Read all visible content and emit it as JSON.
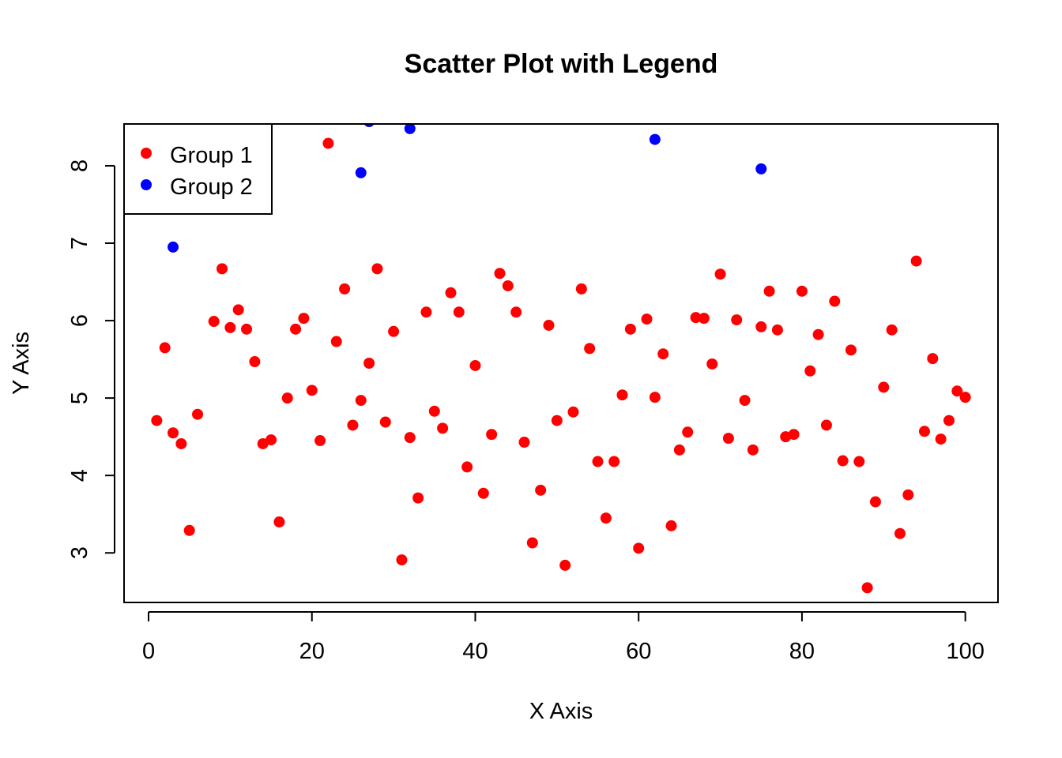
{
  "chart_data": {
    "type": "scatter",
    "title": "Scatter Plot with Legend",
    "xlabel": "X Axis",
    "ylabel": "Y Axis",
    "xlim": [
      -3,
      104
    ],
    "ylim": [
      2.36,
      8.54
    ],
    "xticks": [
      0,
      20,
      40,
      60,
      80,
      100
    ],
    "yticks": [
      3,
      4,
      5,
      6,
      7,
      8
    ],
    "grid": false,
    "legend_position": "top-left",
    "series": [
      {
        "name": "Group 1",
        "color": "#ff0000",
        "x": [
          1,
          2,
          3,
          4,
          5,
          6,
          8,
          9,
          10,
          11,
          12,
          13,
          14,
          15,
          16,
          17,
          18,
          19,
          20,
          21,
          22,
          23,
          24,
          25,
          26,
          27,
          28,
          29,
          30,
          31,
          32,
          33,
          34,
          35,
          36,
          37,
          38,
          39,
          40,
          41,
          42,
          43,
          44,
          45,
          46,
          47,
          48,
          49,
          50,
          51,
          52,
          53,
          54,
          55,
          56,
          57,
          58,
          59,
          60,
          61,
          62,
          63,
          64,
          65,
          66,
          67,
          68,
          69,
          70,
          71,
          72,
          73,
          74,
          75,
          76,
          77,
          78,
          79,
          80,
          81,
          82,
          83,
          84,
          85,
          86,
          87,
          88,
          89,
          90,
          91,
          92,
          93,
          94,
          95,
          96,
          97,
          98,
          99,
          100
        ],
        "y": [
          4.71,
          5.65,
          4.55,
          4.41,
          3.29,
          4.79,
          5.99,
          6.67,
          5.91,
          6.14,
          5.89,
          5.47,
          4.41,
          4.46,
          3.4,
          5.0,
          5.89,
          6.03,
          5.1,
          4.45,
          8.29,
          5.73,
          6.41,
          4.65,
          4.97,
          5.45,
          6.67,
          4.69,
          5.86,
          2.91,
          4.49,
          3.71,
          6.11,
          4.83,
          4.61,
          6.36,
          6.11,
          4.11,
          5.42,
          3.77,
          4.53,
          6.61,
          6.45,
          6.11,
          4.43,
          3.13,
          3.81,
          5.94,
          4.71,
          2.84,
          4.82,
          6.41,
          5.64,
          4.18,
          3.45,
          4.18,
          5.04,
          5.89,
          3.06,
          6.02,
          5.01,
          5.57,
          3.35,
          4.33,
          4.56,
          6.04,
          6.03,
          5.44,
          6.6,
          4.48,
          6.01,
          4.97,
          4.33,
          5.92,
          6.38,
          5.88,
          4.5,
          4.53,
          6.38,
          5.35,
          5.82,
          4.65,
          6.25,
          4.19,
          5.62,
          4.18,
          2.55,
          3.66,
          5.14,
          5.88,
          3.25,
          3.75,
          6.77,
          4.57,
          5.51,
          4.47,
          4.71,
          5.09,
          5.01
        ]
      },
      {
        "name": "Group 2",
        "color": "#0000ff",
        "x": [
          3,
          26,
          27,
          32,
          62,
          75
        ],
        "y": [
          6.95,
          7.91,
          8.57,
          8.48,
          8.34,
          7.96
        ]
      }
    ]
  }
}
